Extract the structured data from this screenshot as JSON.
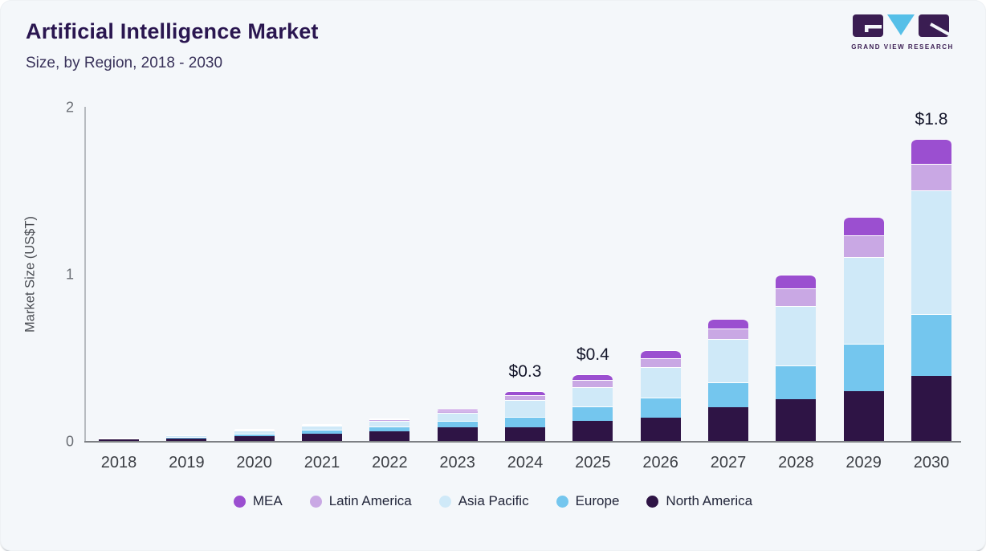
{
  "header": {
    "title": "Artificial Intelligence Market",
    "subtitle": "Size, by Region, 2018 - 2030"
  },
  "logo": {
    "text": "GRAND VIEW RESEARCH",
    "block_color": "#3a1d52",
    "triangle_color": "#55bfe8"
  },
  "chart_data": {
    "type": "bar",
    "stacked": true,
    "title": "Artificial Intelligence Market Size, by Region, 2018 - 2030",
    "xlabel": "",
    "ylabel": "Market Size (US$T)",
    "ylim": [
      0,
      2
    ],
    "yticks": [
      0,
      1,
      2
    ],
    "grid": false,
    "legend_position": "bottom",
    "categories": [
      "2018",
      "2019",
      "2020",
      "2021",
      "2022",
      "2023",
      "2024",
      "2025",
      "2026",
      "2027",
      "2028",
      "2029",
      "2030"
    ],
    "series": [
      {
        "name": "North America",
        "color": "#2e1445",
        "values": [
          0.01,
          0.016,
          0.03,
          0.045,
          0.06,
          0.08,
          0.082,
          0.12,
          0.14,
          0.2,
          0.25,
          0.3,
          0.39
        ]
      },
      {
        "name": "Europe",
        "color": "#74c6ee",
        "values": [
          0.004,
          0.007,
          0.013,
          0.02,
          0.027,
          0.04,
          0.063,
          0.088,
          0.12,
          0.15,
          0.2,
          0.28,
          0.37
        ]
      },
      {
        "name": "Asia Pacific",
        "color": "#cfe9f8",
        "values": [
          0.004,
          0.009,
          0.018,
          0.024,
          0.033,
          0.05,
          0.1,
          0.115,
          0.18,
          0.26,
          0.36,
          0.52,
          0.74
        ]
      },
      {
        "name": "Latin America",
        "color": "#c9a8e4",
        "values": [
          0.001,
          0.002,
          0.005,
          0.006,
          0.008,
          0.012,
          0.031,
          0.04,
          0.055,
          0.065,
          0.105,
          0.13,
          0.16
        ]
      },
      {
        "name": "MEA",
        "color": "#9b4fd0",
        "values": [
          0.001,
          0.002,
          0.004,
          0.005,
          0.007,
          0.01,
          0.024,
          0.034,
          0.05,
          0.055,
          0.08,
          0.11,
          0.15
        ]
      }
    ],
    "bar_labels": {
      "2024": "$0.3",
      "2025": "$0.4",
      "2030": "$1.8"
    },
    "legend_items": [
      {
        "label": "MEA",
        "color": "#9b4fd0"
      },
      {
        "label": "Latin America",
        "color": "#c9a8e4"
      },
      {
        "label": "Asia Pacific",
        "color": "#cfe9f8"
      },
      {
        "label": "Europe",
        "color": "#74c6ee"
      },
      {
        "label": "North America",
        "color": "#2e1445"
      }
    ]
  }
}
